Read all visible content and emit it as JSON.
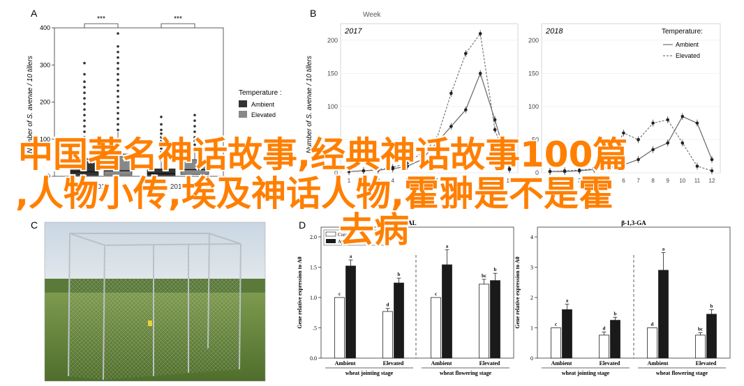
{
  "overlay": {
    "line1": "中国著名神话故事,经典神话故事100篇",
    "line2": ",人物小传,埃及神话人物,霍翀是不是霍",
    "line3": "去病"
  },
  "colors": {
    "ambient": "#333333",
    "elevated": "#888888",
    "black": "#1a1a1a",
    "white": "#ffffff",
    "overlay": "#ff7f00"
  },
  "chart_data": [
    {
      "panel": "A",
      "type": "box",
      "ylabel": "Number of S. avenae / 10 tillers",
      "yticks": [
        0,
        100,
        200,
        300,
        400
      ],
      "ylim": [
        0,
        400
      ],
      "categories": [
        "2017",
        "2018"
      ],
      "legend_title": "Temperature :",
      "legend": [
        {
          "name": "Ambient",
          "color": "#333333"
        },
        {
          "name": "Elevated",
          "color": "#888888"
        }
      ],
      "significance": [
        "***",
        "***"
      ],
      "boxes": [
        {
          "cat": "2017",
          "group": "Ambient",
          "q1": 2,
          "q3": 50,
          "median": 12,
          "whisker_hi": 100,
          "outliers": [
            105,
            120,
            135,
            150,
            165,
            180,
            195,
            210,
            225,
            240,
            255,
            275,
            305
          ]
        },
        {
          "cat": "2017",
          "group": "Elevated",
          "q1": 3,
          "q3": 60,
          "median": 15,
          "whisker_hi": 120,
          "outliers": [
            125,
            140,
            155,
            170,
            185,
            200,
            215,
            230,
            245,
            260,
            275,
            290,
            305,
            320,
            335,
            350,
            385
          ]
        },
        {
          "cat": "2018",
          "group": "Ambient",
          "q1": 2,
          "q3": 20,
          "median": 7,
          "whisker_hi": 40,
          "outliers": [
            45,
            55,
            65,
            75,
            85,
            95,
            105,
            115,
            125,
            140,
            160
          ]
        },
        {
          "cat": "2018",
          "group": "Elevated",
          "q1": 5,
          "q3": 45,
          "median": 18,
          "whisker_hi": 80,
          "outliers": [
            85,
            95,
            105,
            120,
            135,
            150,
            165
          ]
        }
      ]
    },
    {
      "panel": "B",
      "type": "line",
      "ylabel": "Number of S. avenae / 10 tillers",
      "xlabel": "Week",
      "yticks": [
        0,
        50,
        100,
        150,
        200
      ],
      "ylim": [
        0,
        225
      ],
      "x": [
        1,
        2,
        3,
        4,
        5,
        6,
        7,
        8,
        9,
        10,
        11,
        12
      ],
      "legend_title": "Temperature:",
      "legend": [
        {
          "name": "Ambient",
          "style": "solid"
        },
        {
          "name": "Elevated",
          "style": "dashed"
        }
      ],
      "facets": [
        {
          "year": "2017",
          "series": [
            {
              "name": "Ambient",
              "values": [
                2,
                3,
                4,
                6,
                10,
                20,
                45,
                70,
                95,
                150,
                80,
                5
              ]
            },
            {
              "name": "Elevated",
              "values": [
                2,
                3,
                5,
                8,
                15,
                30,
                50,
                120,
                180,
                210,
                65,
                6
              ]
            }
          ]
        },
        {
          "year": "2018",
          "series": [
            {
              "name": "Ambient",
              "values": [
                2,
                2,
                3,
                5,
                8,
                12,
                20,
                35,
                45,
                85,
                75,
                20
              ]
            },
            {
              "name": "Elevated",
              "values": [
                2,
                3,
                4,
                6,
                20,
                60,
                50,
                75,
                80,
                45,
                10,
                3
              ]
            }
          ]
        }
      ]
    },
    {
      "panel": "D",
      "type": "bar",
      "charts": [
        {
          "title": "PAL",
          "ylabel": "Gene relative expression to A0",
          "yticks": [
            "0.0",
            ".5",
            "1.0",
            "1.5",
            "2.0"
          ],
          "ylim": [
            0,
            2.0
          ],
          "legend": [
            "Control",
            "Aphid Feeding"
          ],
          "stages": [
            "wheat jointing stage",
            "wheat flowering stage"
          ],
          "groups": [
            {
              "label": "Ambient",
              "values": [
                1.0,
                1.52
              ],
              "errors": [
                0.0,
                0.1
              ],
              "letters": [
                "c",
                "a"
              ]
            },
            {
              "label": "Elevated",
              "values": [
                0.77,
                1.24
              ],
              "errors": [
                0.05,
                0.08
              ],
              "letters": [
                "d",
                "b"
              ]
            },
            {
              "label": "Ambient",
              "values": [
                1.0,
                1.54
              ],
              "errors": [
                0.0,
                0.25
              ],
              "letters": [
                "c",
                "a"
              ]
            },
            {
              "label": "Elevated",
              "values": [
                1.22,
                1.28
              ],
              "errors": [
                0.08,
                0.12
              ],
              "letters": [
                "bc",
                "b"
              ]
            }
          ]
        },
        {
          "title": "β-1,3-GA",
          "ylabel": "Gene relative expression to A0",
          "yticks": [
            "0",
            "1",
            "2",
            "3",
            "4"
          ],
          "ylim": [
            0,
            4
          ],
          "stages": [
            "wheat jointing stage",
            "wheat flowering stage"
          ],
          "groups": [
            {
              "label": "Ambient",
              "values": [
                1.0,
                1.6
              ],
              "errors": [
                0.0,
                0.18
              ],
              "letters": [
                "c",
                "a"
              ]
            },
            {
              "label": "Elevated",
              "values": [
                0.76,
                1.25
              ],
              "errors": [
                0.1,
                0.1
              ],
              "letters": [
                "d",
                "b"
              ]
            },
            {
              "label": "Ambient",
              "values": [
                1.0,
                2.9
              ],
              "errors": [
                0.0,
                0.58
              ],
              "letters": [
                "d",
                "a"
              ]
            },
            {
              "label": "Elevated",
              "values": [
                0.76,
                1.45
              ],
              "errors": [
                0.08,
                0.15
              ],
              "letters": [
                "bc",
                "b"
              ]
            }
          ]
        }
      ]
    }
  ],
  "panels": {
    "a": "A",
    "b": "B",
    "c": "C",
    "d": "D"
  }
}
